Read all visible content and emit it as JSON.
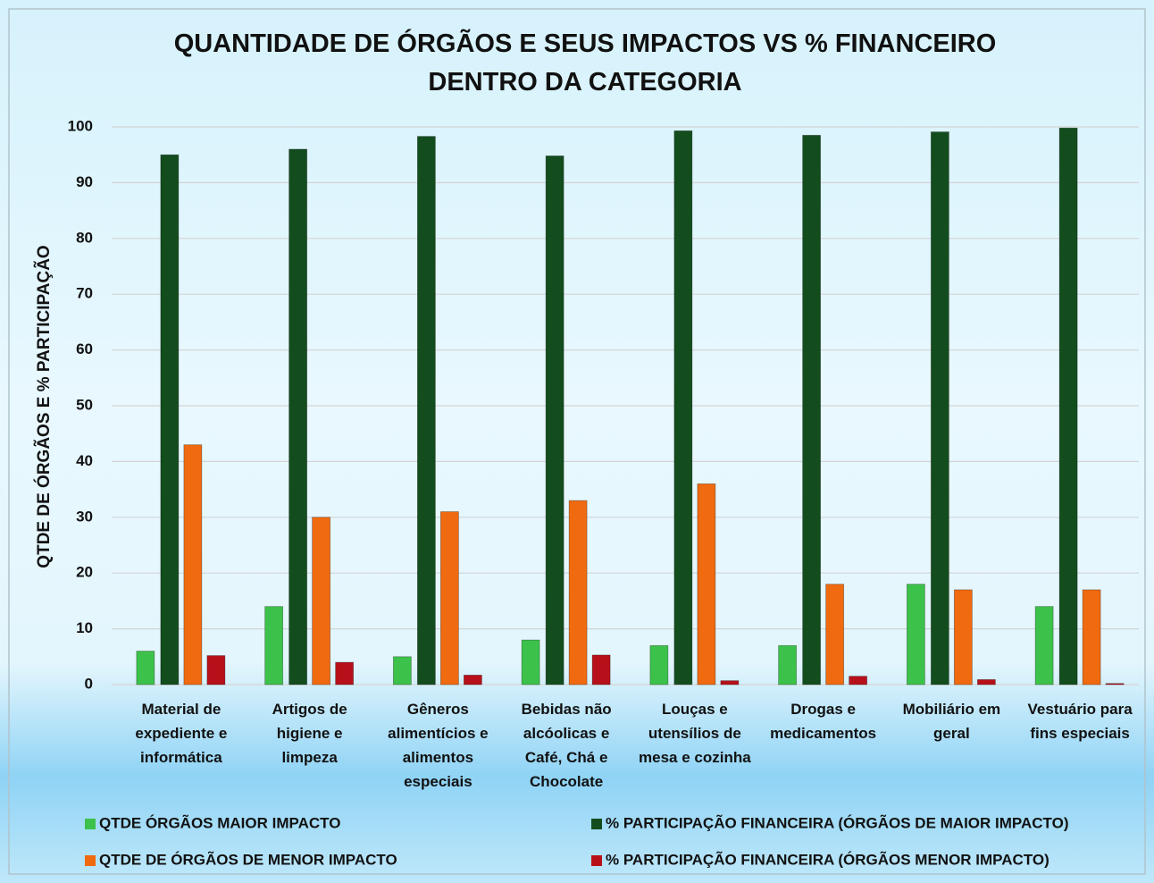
{
  "chart_data": {
    "type": "bar",
    "title": "QUANTIDADE DE ÓRGÃOS E SEUS IMPACTOS VS % FINANCEIRO DENTRO DA CATEGORIA",
    "y_label": "QTDE DE ÓRGÃOS E % PARTICIPAÇÃO",
    "categories": [
      "Material de expediente e informática",
      "Artigos de higiene e limpeza",
      "Gêneros alimentícios e alimentos especiais",
      "Bebidas não alcóolicas e Café, Chá e Chocolate",
      "Louças e utensílios de mesa e cozinha",
      "Drogas e medicamentos",
      "Mobiliário em geral",
      "Vestuário para fins especiais"
    ],
    "series": [
      {
        "name": "QTDE ÓRGÃOS MAIOR IMPACTO",
        "color": "#3cc24a",
        "values": [
          6,
          14,
          5,
          8,
          7,
          7,
          18,
          14
        ]
      },
      {
        "name": "% PARTICIPAÇÃO FINANCEIRA (ÓRGÃOS DE MAIOR IMPACTO)",
        "color": "#134d1e",
        "values": [
          95,
          96,
          98.3,
          94.8,
          99.3,
          98.5,
          99.1,
          99.8
        ]
      },
      {
        "name": "QTDE DE ÓRGÃOS DE MENOR IMPACTO",
        "color": "#f06a10",
        "values": [
          43,
          30,
          31,
          33,
          36,
          18,
          17,
          17
        ]
      },
      {
        "name": "% PARTICIPAÇÃO FINANCEIRA (ÓRGÃOS MENOR IMPACTO)",
        "color": "#b8101a",
        "values": [
          5.2,
          4.0,
          1.7,
          5.3,
          0.7,
          1.5,
          0.9,
          0.2
        ]
      }
    ],
    "ylim": [
      0,
      100
    ],
    "yticks": [
      0,
      10,
      20,
      30,
      40,
      50,
      60,
      70,
      80,
      90,
      100
    ],
    "grid": true,
    "legend": "bottom"
  }
}
